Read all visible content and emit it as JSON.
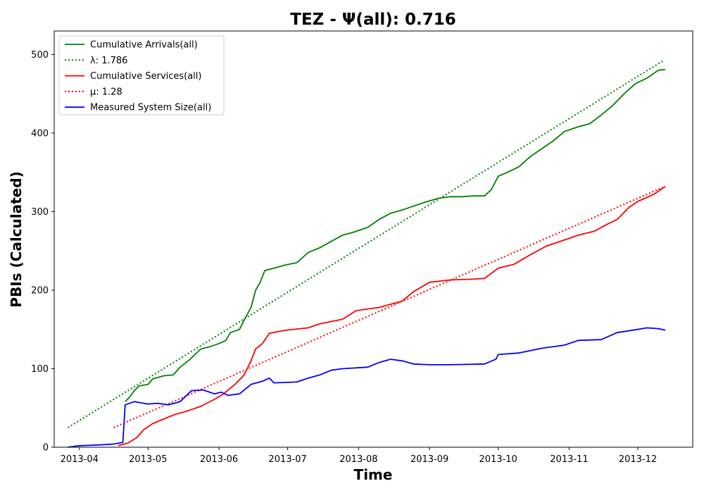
{
  "chart_data": {
    "type": "line",
    "title": "TEZ -  Ψ(all): 0.716",
    "xlabel": "Time",
    "ylabel": "PBIs (Calculated)",
    "x_axis_type": "date",
    "xlim": [
      "2013-03-21",
      "2013-12-25"
    ],
    "ylim": [
      0,
      530
    ],
    "x_ticks": [
      "2013-04",
      "2013-05",
      "2013-06",
      "2013-07",
      "2013-08",
      "2013-09",
      "2013-10",
      "2013-11",
      "2013-12"
    ],
    "y_ticks": [
      0,
      100,
      200,
      300,
      400,
      500
    ],
    "grid": false,
    "legend_position": "top-left",
    "series": [
      {
        "name": "Cumulative Arrivals(all)",
        "color": "#008000",
        "style": "solid",
        "points": [
          [
            "2013-04-21",
            58
          ],
          [
            "2013-04-23",
            64
          ],
          [
            "2013-04-25",
            72
          ],
          [
            "2013-04-27",
            78
          ],
          [
            "2013-05-01",
            80
          ],
          [
            "2013-05-03",
            87
          ],
          [
            "2013-05-08",
            91
          ],
          [
            "2013-05-12",
            92
          ],
          [
            "2013-05-15",
            102
          ],
          [
            "2013-05-19",
            111
          ],
          [
            "2013-05-24",
            125
          ],
          [
            "2013-05-28",
            128
          ],
          [
            "2013-06-01",
            132
          ],
          [
            "2013-06-04",
            136
          ],
          [
            "2013-06-06",
            146
          ],
          [
            "2013-06-10",
            150
          ],
          [
            "2013-06-12",
            162
          ],
          [
            "2013-06-15",
            178
          ],
          [
            "2013-06-17",
            200
          ],
          [
            "2013-06-19",
            210
          ],
          [
            "2013-06-21",
            225
          ],
          [
            "2013-06-25",
            228
          ],
          [
            "2013-06-30",
            232
          ],
          [
            "2013-07-05",
            235
          ],
          [
            "2013-07-10",
            248
          ],
          [
            "2013-07-15",
            254
          ],
          [
            "2013-07-20",
            262
          ],
          [
            "2013-07-25",
            270
          ],
          [
            "2013-07-30",
            274
          ],
          [
            "2013-08-05",
            280
          ],
          [
            "2013-08-10",
            290
          ],
          [
            "2013-08-15",
            298
          ],
          [
            "2013-08-20",
            302
          ],
          [
            "2013-08-25",
            307
          ],
          [
            "2013-08-30",
            312
          ],
          [
            "2013-09-05",
            317
          ],
          [
            "2013-09-10",
            319
          ],
          [
            "2013-09-15",
            319
          ],
          [
            "2013-09-20",
            320
          ],
          [
            "2013-09-25",
            320
          ],
          [
            "2013-09-28",
            328
          ],
          [
            "2013-10-01",
            345
          ],
          [
            "2013-10-05",
            350
          ],
          [
            "2013-10-10",
            357
          ],
          [
            "2013-10-15",
            370
          ],
          [
            "2013-10-20",
            380
          ],
          [
            "2013-10-25",
            390
          ],
          [
            "2013-10-30",
            402
          ],
          [
            "2013-11-05",
            408
          ],
          [
            "2013-11-10",
            412
          ],
          [
            "2013-11-15",
            423
          ],
          [
            "2013-11-20",
            435
          ],
          [
            "2013-11-25",
            450
          ],
          [
            "2013-11-30",
            463
          ],
          [
            "2013-12-05",
            470
          ],
          [
            "2013-12-10",
            480
          ],
          [
            "2013-12-13",
            481
          ]
        ]
      },
      {
        "name": "λ: 1.786",
        "color": "#008000",
        "style": "dotted",
        "points": [
          [
            "2013-03-27",
            25
          ],
          [
            "2013-12-12",
            492
          ]
        ]
      },
      {
        "name": "Cumulative Services(all)",
        "color": "#ff0000",
        "style": "solid",
        "points": [
          [
            "2013-04-18",
            2
          ],
          [
            "2013-04-22",
            5
          ],
          [
            "2013-04-26",
            12
          ],
          [
            "2013-04-29",
            22
          ],
          [
            "2013-05-03",
            30
          ],
          [
            "2013-05-07",
            35
          ],
          [
            "2013-05-13",
            42
          ],
          [
            "2013-05-18",
            46
          ],
          [
            "2013-05-24",
            52
          ],
          [
            "2013-05-30",
            61
          ],
          [
            "2013-06-03",
            68
          ],
          [
            "2013-06-08",
            80
          ],
          [
            "2013-06-12",
            92
          ],
          [
            "2013-06-15",
            110
          ],
          [
            "2013-06-17",
            125
          ],
          [
            "2013-06-20",
            132
          ],
          [
            "2013-06-23",
            145
          ],
          [
            "2013-06-30",
            149
          ],
          [
            "2013-07-10",
            152
          ],
          [
            "2013-07-15",
            157
          ],
          [
            "2013-07-25",
            163
          ],
          [
            "2013-07-31",
            174
          ],
          [
            "2013-08-10",
            178
          ],
          [
            "2013-08-20",
            186
          ],
          [
            "2013-08-25",
            198
          ],
          [
            "2013-09-01",
            210
          ],
          [
            "2013-09-10",
            213
          ],
          [
            "2013-09-20",
            214
          ],
          [
            "2013-09-25",
            215
          ],
          [
            "2013-10-01",
            228
          ],
          [
            "2013-10-08",
            233
          ],
          [
            "2013-10-15",
            245
          ],
          [
            "2013-10-22",
            256
          ],
          [
            "2013-10-30",
            264
          ],
          [
            "2013-11-05",
            270
          ],
          [
            "2013-11-12",
            275
          ],
          [
            "2013-11-17",
            283
          ],
          [
            "2013-11-22",
            290
          ],
          [
            "2013-11-27",
            305
          ],
          [
            "2013-12-01",
            313
          ],
          [
            "2013-12-08",
            322
          ],
          [
            "2013-12-13",
            332
          ]
        ]
      },
      {
        "name": "μ: 1.28",
        "color": "#ff0000",
        "style": "dotted",
        "points": [
          [
            "2013-04-16",
            25
          ],
          [
            "2013-12-12",
            331
          ]
        ]
      },
      {
        "name": "Measured System Size(all)",
        "color": "#0000ff",
        "style": "solid",
        "points": [
          [
            "2013-03-27",
            0
          ],
          [
            "2013-04-01",
            2
          ],
          [
            "2013-04-10",
            3
          ],
          [
            "2013-04-16",
            4
          ],
          [
            "2013-04-20",
            6
          ],
          [
            "2013-04-21",
            54
          ],
          [
            "2013-04-25",
            58
          ],
          [
            "2013-05-01",
            55
          ],
          [
            "2013-05-05",
            56
          ],
          [
            "2013-05-10",
            54
          ],
          [
            "2013-05-15",
            58
          ],
          [
            "2013-05-20",
            72
          ],
          [
            "2013-05-25",
            73
          ],
          [
            "2013-05-30",
            68
          ],
          [
            "2013-06-02",
            70
          ],
          [
            "2013-06-05",
            66
          ],
          [
            "2013-06-10",
            68
          ],
          [
            "2013-06-15",
            80
          ],
          [
            "2013-06-20",
            84
          ],
          [
            "2013-06-23",
            88
          ],
          [
            "2013-06-25",
            82
          ],
          [
            "2013-07-05",
            83
          ],
          [
            "2013-07-10",
            88
          ],
          [
            "2013-07-15",
            92
          ],
          [
            "2013-07-20",
            98
          ],
          [
            "2013-07-25",
            100
          ],
          [
            "2013-08-05",
            102
          ],
          [
            "2013-08-10",
            108
          ],
          [
            "2013-08-15",
            112
          ],
          [
            "2013-08-20",
            110
          ],
          [
            "2013-08-25",
            106
          ],
          [
            "2013-09-01",
            105
          ],
          [
            "2013-09-10",
            105
          ],
          [
            "2013-09-25",
            106
          ],
          [
            "2013-09-30",
            112
          ],
          [
            "2013-10-01",
            118
          ],
          [
            "2013-10-10",
            120
          ],
          [
            "2013-10-20",
            126
          ],
          [
            "2013-10-30",
            130
          ],
          [
            "2013-11-05",
            136
          ],
          [
            "2013-11-15",
            137
          ],
          [
            "2013-11-22",
            146
          ],
          [
            "2013-12-01",
            150
          ],
          [
            "2013-12-05",
            152
          ],
          [
            "2013-12-10",
            151
          ],
          [
            "2013-12-13",
            149
          ]
        ]
      }
    ]
  }
}
